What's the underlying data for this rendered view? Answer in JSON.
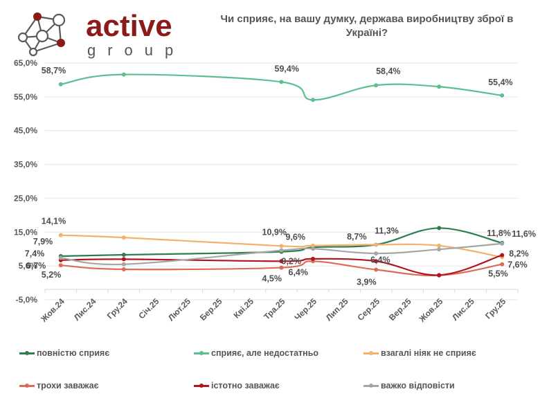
{
  "brand": {
    "name": "active",
    "sub": "group",
    "logo_icon": "network-nodes-icon",
    "color_primary": "#8b1a1a",
    "color_secondary": "#555555"
  },
  "chart_data": {
    "type": "line",
    "title": "Чи сприяє, на вашу думку, держава виробництву зброї в Україні?",
    "xlabel": "",
    "ylabel": "",
    "categories": [
      "Жов.24",
      "Лис.24",
      "Гру.24",
      "Січ.25",
      "Лют.25",
      "Бер.25",
      "Кві.25",
      "Тра.25",
      "Чер.25",
      "Лип.25",
      "Сер.25",
      "Вер.25",
      "Жов.25",
      "Лис.25",
      "Гру.25"
    ],
    "ylim": [
      -5,
      65
    ],
    "yticks": [
      "-5,0%",
      "5,0%",
      "15,0%",
      "25,0%",
      "35,0%",
      "45,0%",
      "55,0%",
      "65,0%"
    ],
    "ytick_values": [
      -5,
      5,
      15,
      25,
      35,
      45,
      55,
      65
    ],
    "grid": true,
    "legend_position": "bottom",
    "series": [
      {
        "name": "повністю сприяє",
        "color": "#2e7d4f",
        "values": [
          7.9,
          null,
          8.3,
          null,
          null,
          null,
          null,
          9.2,
          10.5,
          null,
          11.3,
          null,
          16.2,
          null,
          11.8
        ],
        "labels": {
          "0": "7,9%",
          "7": "9,2%",
          "10": "11,3%",
          "14": "11,8%"
        }
      },
      {
        "name": "сприяє, але недостатньо",
        "color": "#5bbf8f",
        "values": [
          58.7,
          null,
          61.6,
          null,
          null,
          null,
          null,
          59.4,
          54.1,
          null,
          58.4,
          null,
          58.0,
          null,
          55.4
        ],
        "labels": {
          "0": "58,7%",
          "7": "59,4%",
          "10": "58,4%",
          "14": "55,4%"
        }
      },
      {
        "name": "взагалі ніяк не сприяє",
        "color": "#f2b26b",
        "values": [
          14.1,
          null,
          13.4,
          null,
          null,
          null,
          null,
          10.9,
          11.0,
          null,
          11.3,
          null,
          11.0,
          null,
          7.6
        ],
        "labels": {
          "0": "14,1%",
          "7": "10,9%",
          "14": "7,6%"
        }
      },
      {
        "name": "трохи заважає",
        "color": "#dd6b5b",
        "values": [
          5.2,
          null,
          4.0,
          null,
          null,
          null,
          null,
          4.5,
          6.4,
          null,
          3.9,
          null,
          2.2,
          null,
          5.5
        ],
        "labels": {
          "0": "5,2%",
          "7": "4,5%",
          "10": "3,9%",
          "14": "5,5%"
        }
      },
      {
        "name": "істотно заважає",
        "color": "#b0151d",
        "values": [
          6.7,
          null,
          7.0,
          null,
          null,
          null,
          null,
          6.4,
          7.1,
          null,
          6.4,
          null,
          2.3,
          null,
          8.2
        ],
        "labels": {
          "0": "6,7%",
          "7": "6,4%",
          "10": "6,4%",
          "14": "8,2%"
        }
      },
      {
        "name": "важко відповісти",
        "color": "#a6a6a6",
        "values": [
          7.4,
          null,
          5.5,
          null,
          null,
          null,
          null,
          9.6,
          10.1,
          null,
          8.7,
          null,
          9.9,
          null,
          11.6
        ],
        "labels": {
          "0": "7,4%",
          "7": "9,6%",
          "10": "8,7%",
          "14": "11,6%"
        }
      }
    ]
  }
}
